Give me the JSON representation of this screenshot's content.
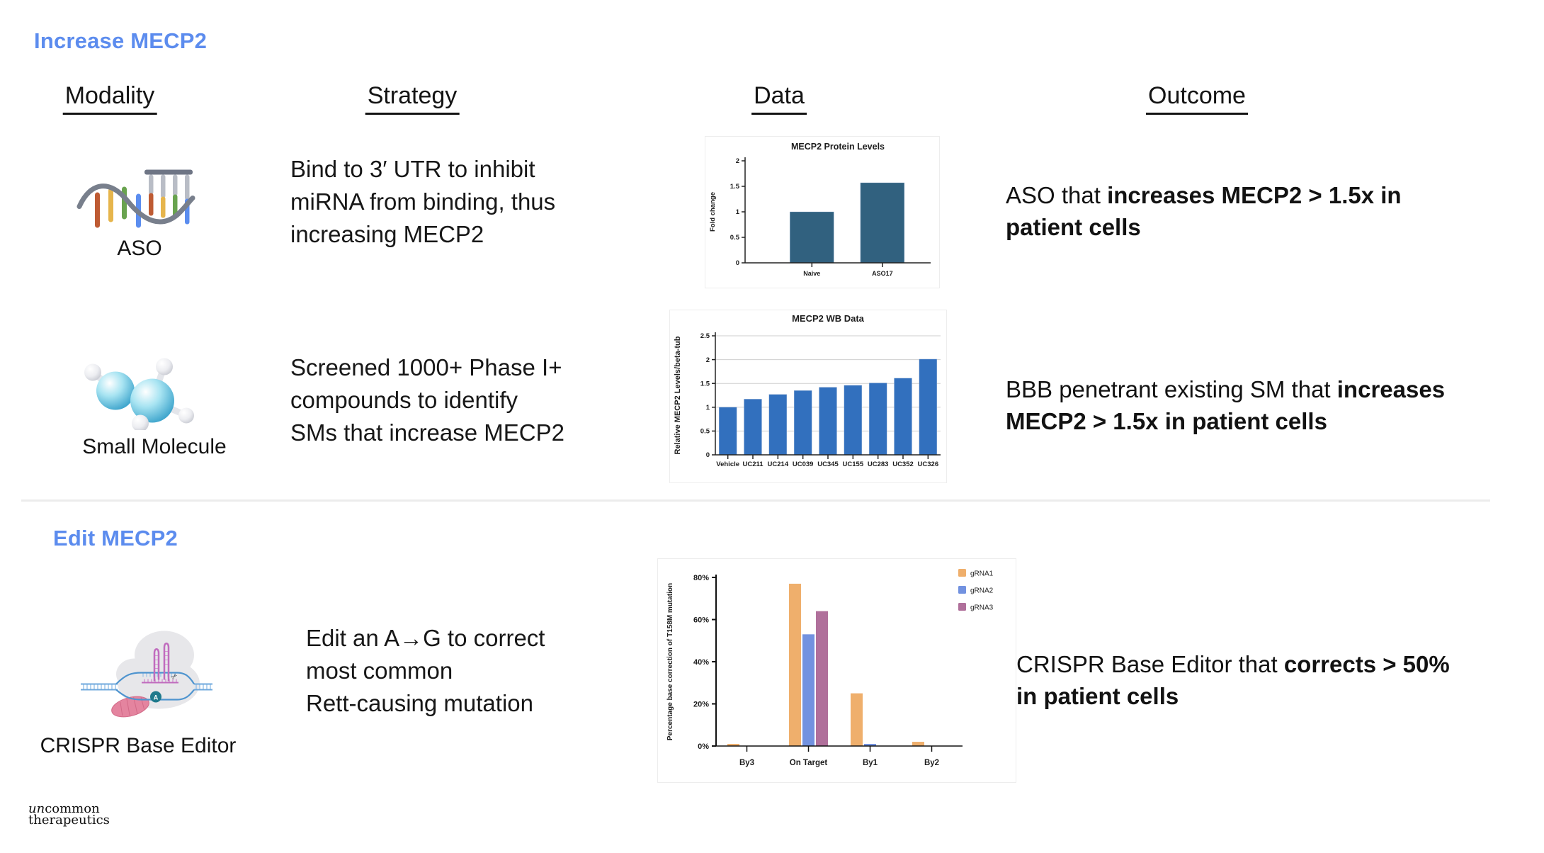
{
  "colors": {
    "heading_blue": "#5C8CEE",
    "chart1_bar": "#31617F",
    "chart2_bar": "#3270BE",
    "grna1_orange": "#EFAF6C",
    "grna2_blue": "#7292E0",
    "grna3_mauve": "#B0709B"
  },
  "page": {
    "sections": [
      {
        "title": "Increase MECP2"
      },
      {
        "title": "Edit MECP2"
      }
    ],
    "columns": [
      "Modality",
      "Strategy",
      "Data",
      "Outcome"
    ],
    "rows": [
      {
        "modality": "ASO",
        "strategy": "Bind to 3′ UTR to inhibit\nmiRNA from binding, thus\nincreasing MECP2",
        "outcome": [
          {
            "text": "ASO that ",
            "bold": false
          },
          {
            "text": "increases MECP2 > 1.5x in\npatient cells",
            "bold": true
          }
        ]
      },
      {
        "modality": "Small Molecule",
        "strategy": "Screened 1000+ Phase I+\ncompounds to identify\nSMs that increase MECP2",
        "outcome": [
          {
            "text": "BBB penetrant existing SM that ",
            "bold": false
          },
          {
            "text": "increases\nMECP2 > 1.5x in patient cells",
            "bold": true
          }
        ]
      },
      {
        "modality": "CRISPR Base Editor",
        "strategy": "Edit an A→G to correct\nmost common\nRett-causing mutation",
        "outcome": [
          {
            "text": "CRISPR Base Editor that ",
            "bold": false
          },
          {
            "text": "corrects > 50%\nin patient cells",
            "bold": true
          }
        ]
      }
    ],
    "logo": {
      "prefix_italic": "un",
      "prefix_rest": "common",
      "line2": "therapeutics"
    }
  },
  "chart_data": [
    {
      "type": "bar",
      "title": "MECP2 Protein Levels",
      "xlabel": "",
      "ylabel": "Fold change",
      "categories": [
        "Naive",
        "ASO17"
      ],
      "values": [
        1.0,
        1.57
      ],
      "ylim": [
        0,
        2
      ],
      "yticks": [
        0,
        0.5,
        1,
        1.5,
        2
      ],
      "bar_color": "#31617F",
      "grid": false,
      "legend_position": "none"
    },
    {
      "type": "bar",
      "title": "MECP2 WB Data",
      "xlabel": "",
      "ylabel": "Relative MECP2 Levels/beta-tub",
      "categories": [
        "Vehicle",
        "UC211",
        "UC214",
        "UC039",
        "UC345",
        "UC155",
        "UC283",
        "UC352",
        "UC326"
      ],
      "values": [
        1.0,
        1.17,
        1.27,
        1.35,
        1.42,
        1.46,
        1.51,
        1.61,
        2.01
      ],
      "ylim": [
        0,
        2.5
      ],
      "yticks": [
        0,
        0.5,
        1,
        1.5,
        2,
        2.5
      ],
      "bar_color": "#3270BE",
      "grid": true,
      "legend_position": "none"
    },
    {
      "type": "bar",
      "title": "",
      "xlabel": "",
      "ylabel": "Percentage base correction of T158M mutation",
      "categories": [
        "By3",
        "On Target",
        "By1",
        "By2"
      ],
      "series": [
        {
          "name": "gRNA1",
          "color": "#EFAF6C",
          "values": [
            1,
            77,
            25,
            2
          ]
        },
        {
          "name": "gRNA2",
          "color": "#7292E0",
          "values": [
            0,
            53,
            1,
            0
          ]
        },
        {
          "name": "gRNA3",
          "color": "#B0709B",
          "values": [
            0,
            64,
            0,
            0
          ]
        }
      ],
      "ylim": [
        0,
        80
      ],
      "ytick_values": [
        0,
        20,
        40,
        60,
        80
      ],
      "ytick_labels": [
        "0%",
        "20%",
        "40%",
        "60%",
        "80%"
      ],
      "grid": false,
      "legend_position": "top-right"
    }
  ]
}
